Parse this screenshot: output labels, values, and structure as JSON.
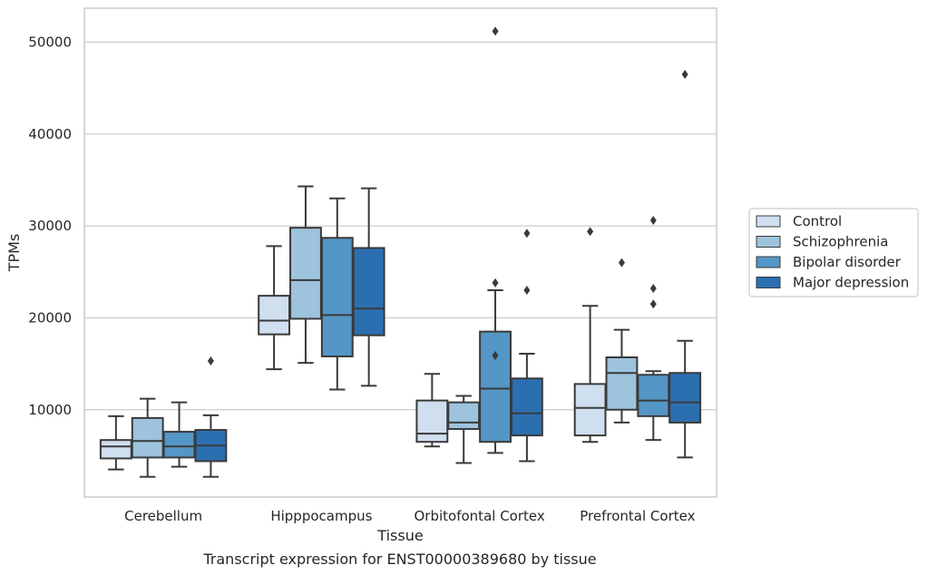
{
  "chart_data": {
    "type": "box",
    "title": "Transcript expression for ENST00000389680 by tissue",
    "xlabel": "Tissue",
    "ylabel": "TPMs",
    "ylim": [
      500,
      53700
    ],
    "yticks": [
      10000,
      20000,
      30000,
      40000,
      50000
    ],
    "grid": "horizontal",
    "legend_position": "right",
    "categories": [
      "Cerebellum",
      "Hipppocampus",
      "Orbitofontal Cortex",
      "Prefrontal Cortex"
    ],
    "series": [
      {
        "name": "Control",
        "color": "#d0dff0",
        "boxes": [
          {
            "whislo": 3500,
            "q1": 4700,
            "med": 6000,
            "q3": 6700,
            "whishi": 9300,
            "fliers": []
          },
          {
            "whislo": 14400,
            "q1": 18200,
            "med": 19700,
            "q3": 22400,
            "whishi": 27800,
            "fliers": []
          },
          {
            "whislo": 6000,
            "q1": 6500,
            "med": 7400,
            "q3": 11000,
            "whishi": 13900,
            "fliers": []
          },
          {
            "whislo": 6500,
            "q1": 7200,
            "med": 10200,
            "q3": 12800,
            "whishi": 21300,
            "fliers": [
              29400
            ]
          }
        ]
      },
      {
        "name": "Schizophrenia",
        "color": "#9dc3dd",
        "boxes": [
          {
            "whislo": 2700,
            "q1": 4800,
            "med": 6600,
            "q3": 9100,
            "whishi": 11200,
            "fliers": []
          },
          {
            "whislo": 15100,
            "q1": 19900,
            "med": 24100,
            "q3": 29800,
            "whishi": 34300,
            "fliers": []
          },
          {
            "whislo": 4200,
            "q1": 7900,
            "med": 8600,
            "q3": 10800,
            "whishi": 11500,
            "fliers": []
          },
          {
            "whislo": 8600,
            "q1": 10000,
            "med": 14000,
            "q3": 15700,
            "whishi": 18700,
            "fliers": [
              26000
            ]
          }
        ]
      },
      {
        "name": "Bipolar disorder",
        "color": "#5496c5",
        "boxes": [
          {
            "whislo": 3800,
            "q1": 4800,
            "med": 6000,
            "q3": 7600,
            "whishi": 10800,
            "fliers": []
          },
          {
            "whislo": 12200,
            "q1": 15800,
            "med": 20300,
            "q3": 28700,
            "whishi": 33000,
            "fliers": []
          },
          {
            "whislo": 5300,
            "q1": 6500,
            "med": 12300,
            "q3": 18500,
            "whishi": 23000,
            "fliers": [
              23800,
              15900,
              51200
            ]
          },
          {
            "whislo": 6700,
            "q1": 9300,
            "med": 11000,
            "q3": 13800,
            "whishi": 14200,
            "fliers": [
              30600,
              23200,
              21500
            ]
          }
        ]
      },
      {
        "name": "Major depression",
        "color": "#2c6fb0",
        "boxes": [
          {
            "whislo": 2700,
            "q1": 4400,
            "med": 6100,
            "q3": 7800,
            "whishi": 9400,
            "fliers": [
              15300
            ]
          },
          {
            "whislo": 12600,
            "q1": 18100,
            "med": 21000,
            "q3": 27600,
            "whishi": 34100,
            "fliers": []
          },
          {
            "whislo": 4400,
            "q1": 7200,
            "med": 9600,
            "q3": 13400,
            "whishi": 16100,
            "fliers": [
              29200,
              23000
            ]
          },
          {
            "whislo": 4800,
            "q1": 8600,
            "med": 10800,
            "q3": 14000,
            "whishi": 17500,
            "fliers": [
              46500
            ]
          }
        ]
      }
    ]
  }
}
